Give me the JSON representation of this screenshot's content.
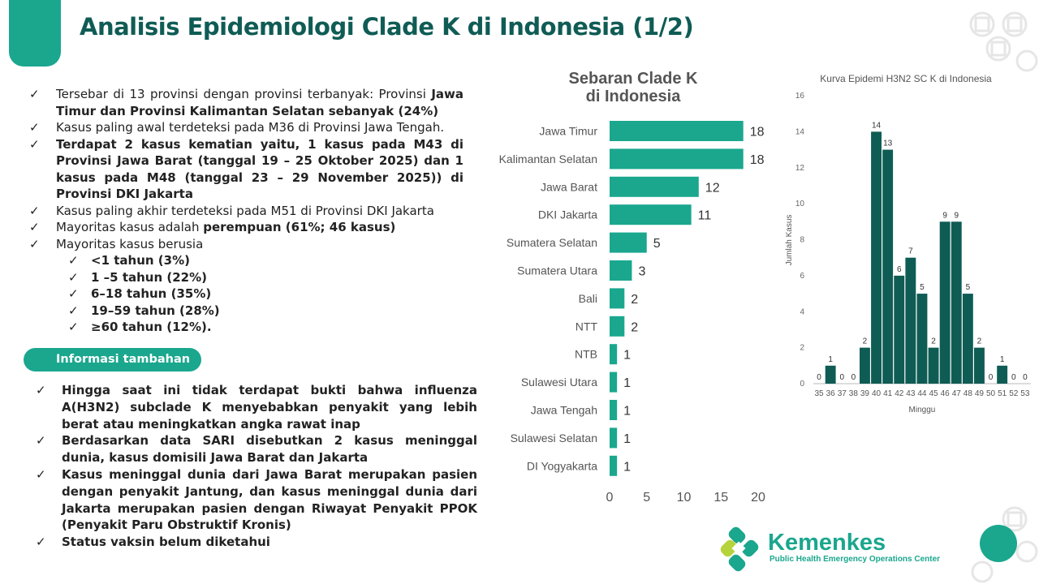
{
  "header": {
    "title": "Analisis Epidemiologi Clade K di Indonesia (1/2)"
  },
  "bullets": {
    "check": "✓",
    "b1_pre": "Tersebar di 13 provinsi dengan provinsi terbanyak: Provinsi ",
    "b1_bold": "Jawa Timur dan Provinsi Kalimantan Selatan sebanyak (24%)",
    "b2": "Kasus paling awal terdeteksi pada M36 di Provinsi  Jawa Tengah.",
    "b3": "Terdapat 2 kasus kematian yaitu, 1 kasus pada M43 di Provinsi Jawa Barat (tanggal 19 – 25 Oktober 2025) dan 1 kasus pada M48 (tanggal 23 – 29 November 2025)) di Provinsi DKI Jakarta",
    "b4": "Kasus paling akhir terdeteksi pada M51 di Provinsi DKI Jakarta",
    "b5_pre": "Mayoritas kasus adalah ",
    "b5_bold": "perempuan (61%; 46 kasus)",
    "b6": "Mayoritas kasus berusia",
    "ages": [
      "<1 tahun (3%)",
      "1 –5 tahun (22%)",
      "6–18 tahun (35%)",
      "19–59 tahun (28%)",
      "≥60 tahun (12%)."
    ]
  },
  "info": {
    "label": "Informasi tambahan",
    "items": [
      "Hingga saat ini tidak terdapat bukti bahwa influenza A(H3N2) subclade K menyebabkan penyakit yang lebih berat atau meningkatkan angka rawat inap",
      "Berdasarkan data SARI disebutkan 2 kasus meninggal dunia, kasus domisili Jawa Barat dan Jakarta",
      "Kasus meninggal dunia dari Jawa Barat merupakan pasien dengan penyakit Jantung, dan kasus meninggal dunia dari Jakarta merupakan pasien dengan Riwayat Penyakit PPOK (Penyakit Paru Obstruktif Kronis)",
      "Status vaksin belum diketahui"
    ]
  },
  "logo": {
    "name": "Kemenkes",
    "subtitle": "Public Health Emergency Operations Center"
  },
  "colors": {
    "accent": "#1aa78e",
    "title": "#0f5c55",
    "bar_h": "#1aa78e",
    "bar_v": "#0f5c55"
  },
  "chart_data": [
    {
      "type": "bar",
      "orientation": "horizontal",
      "title": "Sebaran Clade K di Indonesia",
      "categories": [
        "Jawa Timur",
        "Kalimantan Selatan",
        "Jawa Barat",
        "DKI Jakarta",
        "Sumatera Selatan",
        "Sumatera Utara",
        "Bali",
        "NTT",
        "NTB",
        "Sulawesi Utara",
        "Jawa Tengah",
        "Sulawesi Selatan",
        "DI Yogyakarta"
      ],
      "values": [
        18,
        18,
        12,
        11,
        5,
        3,
        2,
        2,
        1,
        1,
        1,
        1,
        1
      ],
      "xlim": [
        0,
        20
      ],
      "xticks": [
        "0",
        "5",
        "10",
        "15",
        "20"
      ],
      "grid": false
    },
    {
      "type": "bar",
      "title": "Kurva Epidemi H3N2 SC K di Indonesia",
      "xlabel": "Minggu",
      "ylabel": "Jumlah Kasus",
      "categories": [
        "35",
        "36",
        "37",
        "38",
        "39",
        "40",
        "41",
        "42",
        "43",
        "44",
        "45",
        "46",
        "47",
        "48",
        "49",
        "50",
        "51",
        "52",
        "53"
      ],
      "values": [
        0,
        1,
        0,
        0,
        2,
        14,
        13,
        6,
        7,
        5,
        2,
        9,
        9,
        5,
        2,
        0,
        1,
        0,
        0
      ],
      "ylim": [
        0,
        16
      ],
      "yticks": [
        "0",
        "2",
        "4",
        "6",
        "8",
        "10",
        "12",
        "14",
        "16"
      ],
      "grid": false
    }
  ]
}
